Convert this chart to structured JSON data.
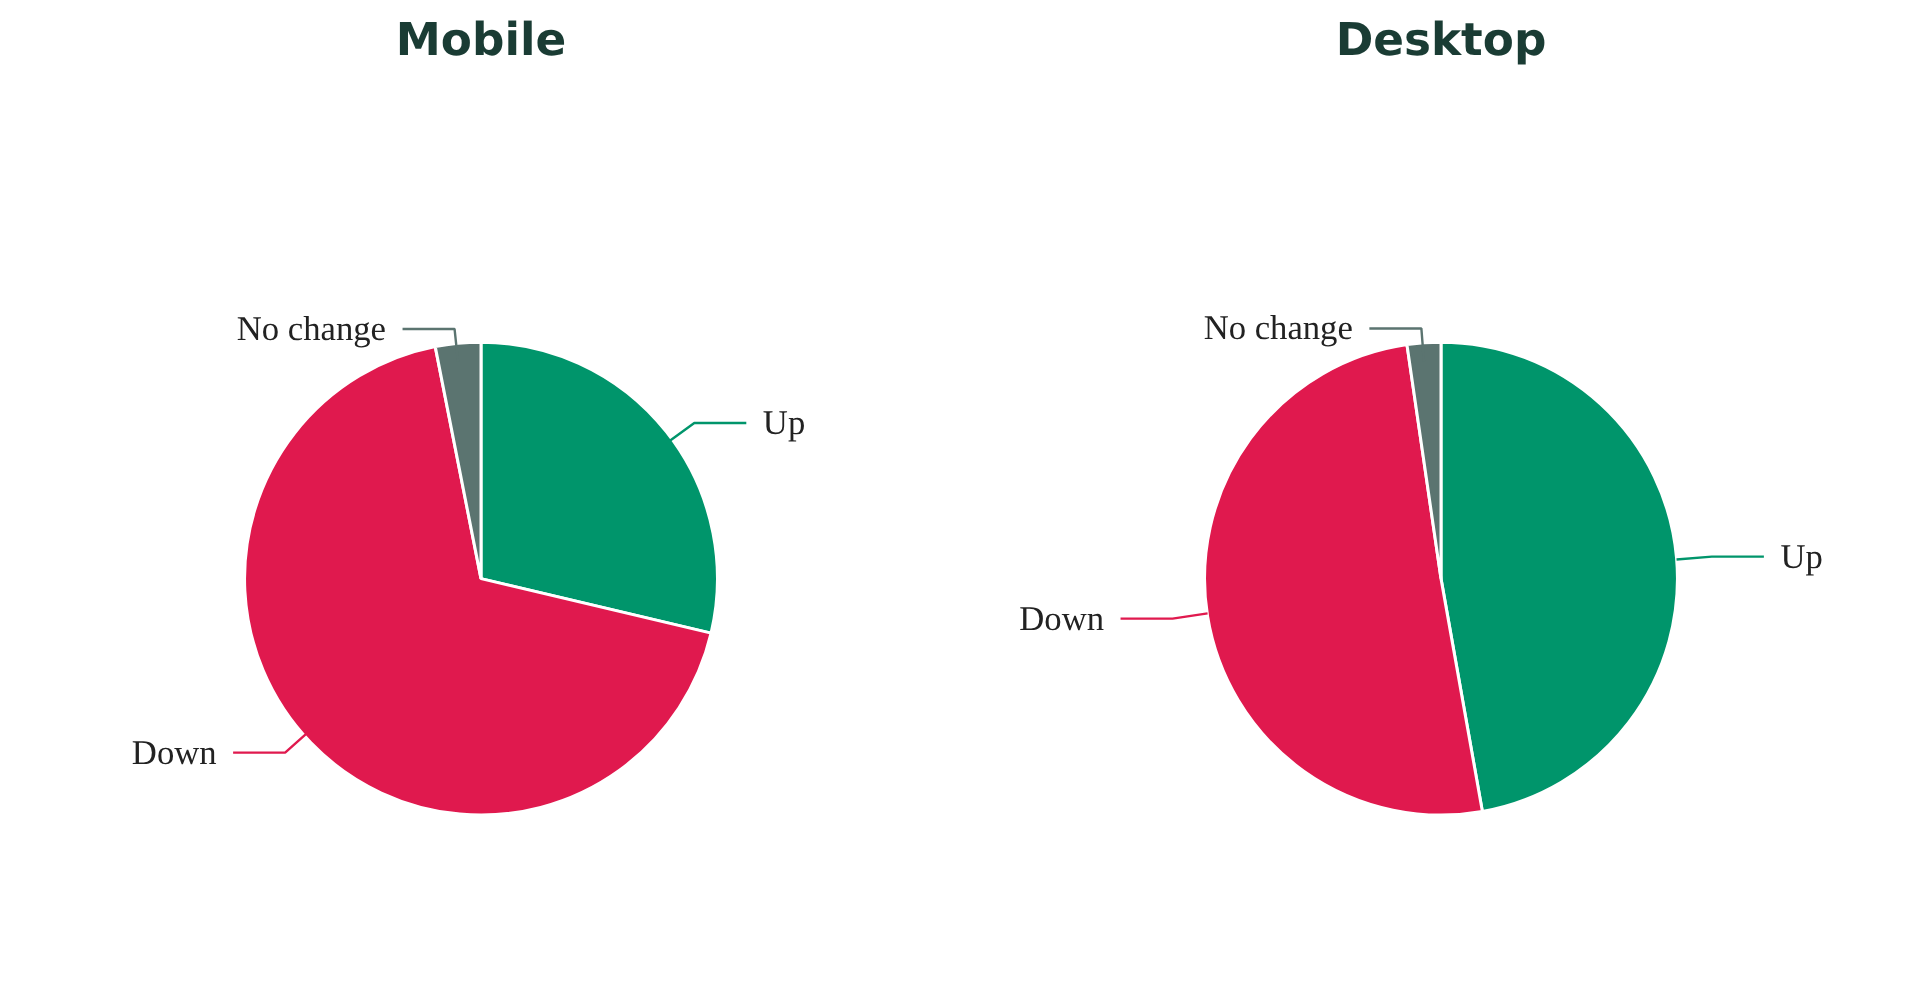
{
  "chart_data": [
    {
      "type": "pie",
      "title": "Mobile",
      "categories": [
        "Up",
        "Down",
        "No change"
      ],
      "values": [
        28.7,
        68.2,
        3.1
      ],
      "colors": [
        "#00956b",
        "#e0194e",
        "#5b7470"
      ]
    },
    {
      "type": "pie",
      "title": "Desktop",
      "categories": [
        "Up",
        "Down",
        "No change"
      ],
      "values": [
        47.2,
        50.5,
        2.3
      ],
      "colors": [
        "#00956b",
        "#e0194e",
        "#5b7470"
      ]
    }
  ]
}
